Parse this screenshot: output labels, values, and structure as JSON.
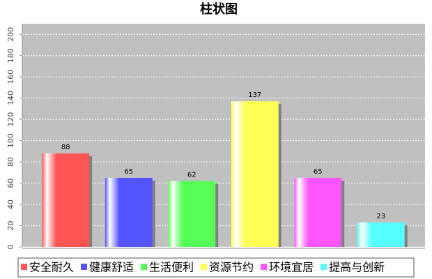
{
  "chart_data": {
    "type": "bar",
    "title": "柱状图",
    "categories": [
      "安全耐久",
      "健康舒适",
      "生活便利",
      "资源节约",
      "环境宜居",
      "提高与创新"
    ],
    "values": [
      88,
      65,
      62,
      137,
      65,
      23
    ],
    "colors": [
      "#ff5555",
      "#5555ff",
      "#55ff55",
      "#ffff55",
      "#ff55ff",
      "#55ffff"
    ],
    "ylim": [
      0,
      210
    ],
    "yticks": [
      0,
      20,
      40,
      60,
      80,
      100,
      120,
      140,
      160,
      180,
      200
    ],
    "grid": true,
    "legend": "bottom"
  }
}
